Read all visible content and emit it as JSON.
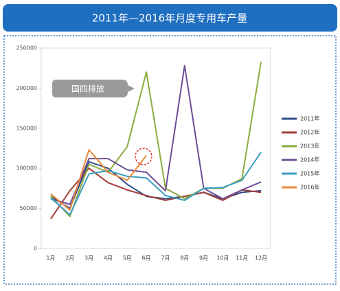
{
  "chart_data": {
    "type": "line",
    "title": "2011年—2016年月度专用车产量",
    "annotation": "国四排放",
    "categories": [
      "1月",
      "2月",
      "3月",
      "4月",
      "5月",
      "6月",
      "7月",
      "8月",
      "9月",
      "10月",
      "11月",
      "12月"
    ],
    "series": [
      {
        "name": "2011年",
        "color": "#2e4d8a",
        "values": [
          65000,
          50000,
          108000,
          100000,
          80000,
          65000,
          62000,
          65000,
          70000,
          62000,
          70000,
          72000
        ]
      },
      {
        "name": "2012年",
        "color": "#a33b35",
        "values": [
          37000,
          72000,
          100000,
          82000,
          73000,
          66000,
          60000,
          65000,
          70000,
          60000,
          73000,
          70000
        ]
      },
      {
        "name": "2013年",
        "color": "#8aac3c",
        "values": [
          65000,
          40000,
          105000,
          95000,
          127000,
          220000,
          75000,
          62000,
          75000,
          75000,
          87000,
          233000
        ]
      },
      {
        "name": "2014年",
        "color": "#6b4e96",
        "values": [
          62000,
          55000,
          112000,
          112000,
          98000,
          95000,
          72000,
          228000,
          75000,
          62000,
          73000,
          83000
        ]
      },
      {
        "name": "2015年",
        "color": "#3a9cc0",
        "values": [
          63000,
          42000,
          93000,
          97000,
          90000,
          88000,
          66000,
          60000,
          75000,
          76000,
          85000,
          120000
        ]
      },
      {
        "name": "2016年",
        "color": "#e8883a",
        "values": [
          68000,
          48000,
          123000,
          95000,
          85000,
          116000,
          null,
          null,
          null,
          null,
          null,
          null
        ]
      }
    ],
    "ylim": [
      0,
      250000
    ],
    "yticks": [
      0,
      50000,
      100000,
      150000,
      200000,
      250000
    ],
    "grid": false
  }
}
